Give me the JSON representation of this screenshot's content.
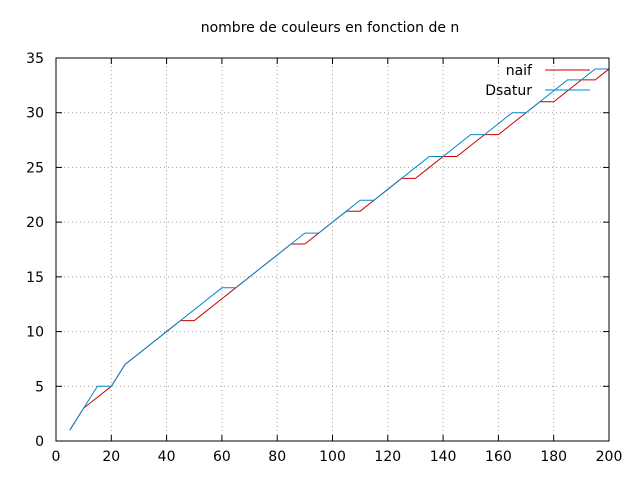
{
  "chart_data": {
    "type": "line",
    "title": "nombre de couleurs en fonction de n",
    "xlabel": "",
    "ylabel": "",
    "xlim": [
      0,
      200
    ],
    "ylim": [
      0,
      35
    ],
    "xticks": [
      "0",
      "20",
      "40",
      "60",
      "80",
      "100",
      "120",
      "140",
      "160",
      "180",
      "200"
    ],
    "yticks": [
      "0",
      "5",
      "10",
      "15",
      "20",
      "25",
      "30",
      "35"
    ],
    "grid": true,
    "legend_position": "top-right",
    "series": [
      {
        "name": "naif",
        "color": "#cc0000",
        "x": [
          5,
          10,
          15,
          20,
          25,
          30,
          35,
          40,
          45,
          50,
          55,
          60,
          65,
          70,
          75,
          80,
          85,
          90,
          95,
          100,
          105,
          110,
          115,
          120,
          125,
          130,
          135,
          140,
          145,
          150,
          155,
          160,
          165,
          170,
          175,
          180,
          185,
          190,
          195,
          200
        ],
        "y": [
          1,
          3,
          4,
          5,
          7,
          8,
          9,
          10,
          11,
          11,
          12,
          13,
          14,
          15,
          16,
          17,
          18,
          18,
          19,
          20,
          21,
          21,
          22,
          23,
          24,
          24,
          25,
          26,
          26,
          27,
          28,
          28,
          29,
          30,
          31,
          31,
          32,
          33,
          33,
          34
        ]
      },
      {
        "name": "Dsatur",
        "color": "#0088cc",
        "x": [
          5,
          10,
          15,
          20,
          25,
          30,
          35,
          40,
          45,
          50,
          55,
          60,
          65,
          70,
          75,
          80,
          85,
          90,
          95,
          100,
          105,
          110,
          115,
          120,
          125,
          130,
          135,
          140,
          145,
          150,
          155,
          160,
          165,
          170,
          175,
          180,
          185,
          190,
          195,
          200
        ],
        "y": [
          1,
          3,
          5,
          5,
          7,
          8,
          9,
          10,
          11,
          12,
          13,
          14,
          14,
          15,
          16,
          17,
          18,
          19,
          19,
          20,
          21,
          22,
          22,
          23,
          24,
          25,
          26,
          26,
          27,
          28,
          28,
          29,
          30,
          30,
          31,
          32,
          33,
          33,
          34,
          34
        ]
      }
    ]
  }
}
